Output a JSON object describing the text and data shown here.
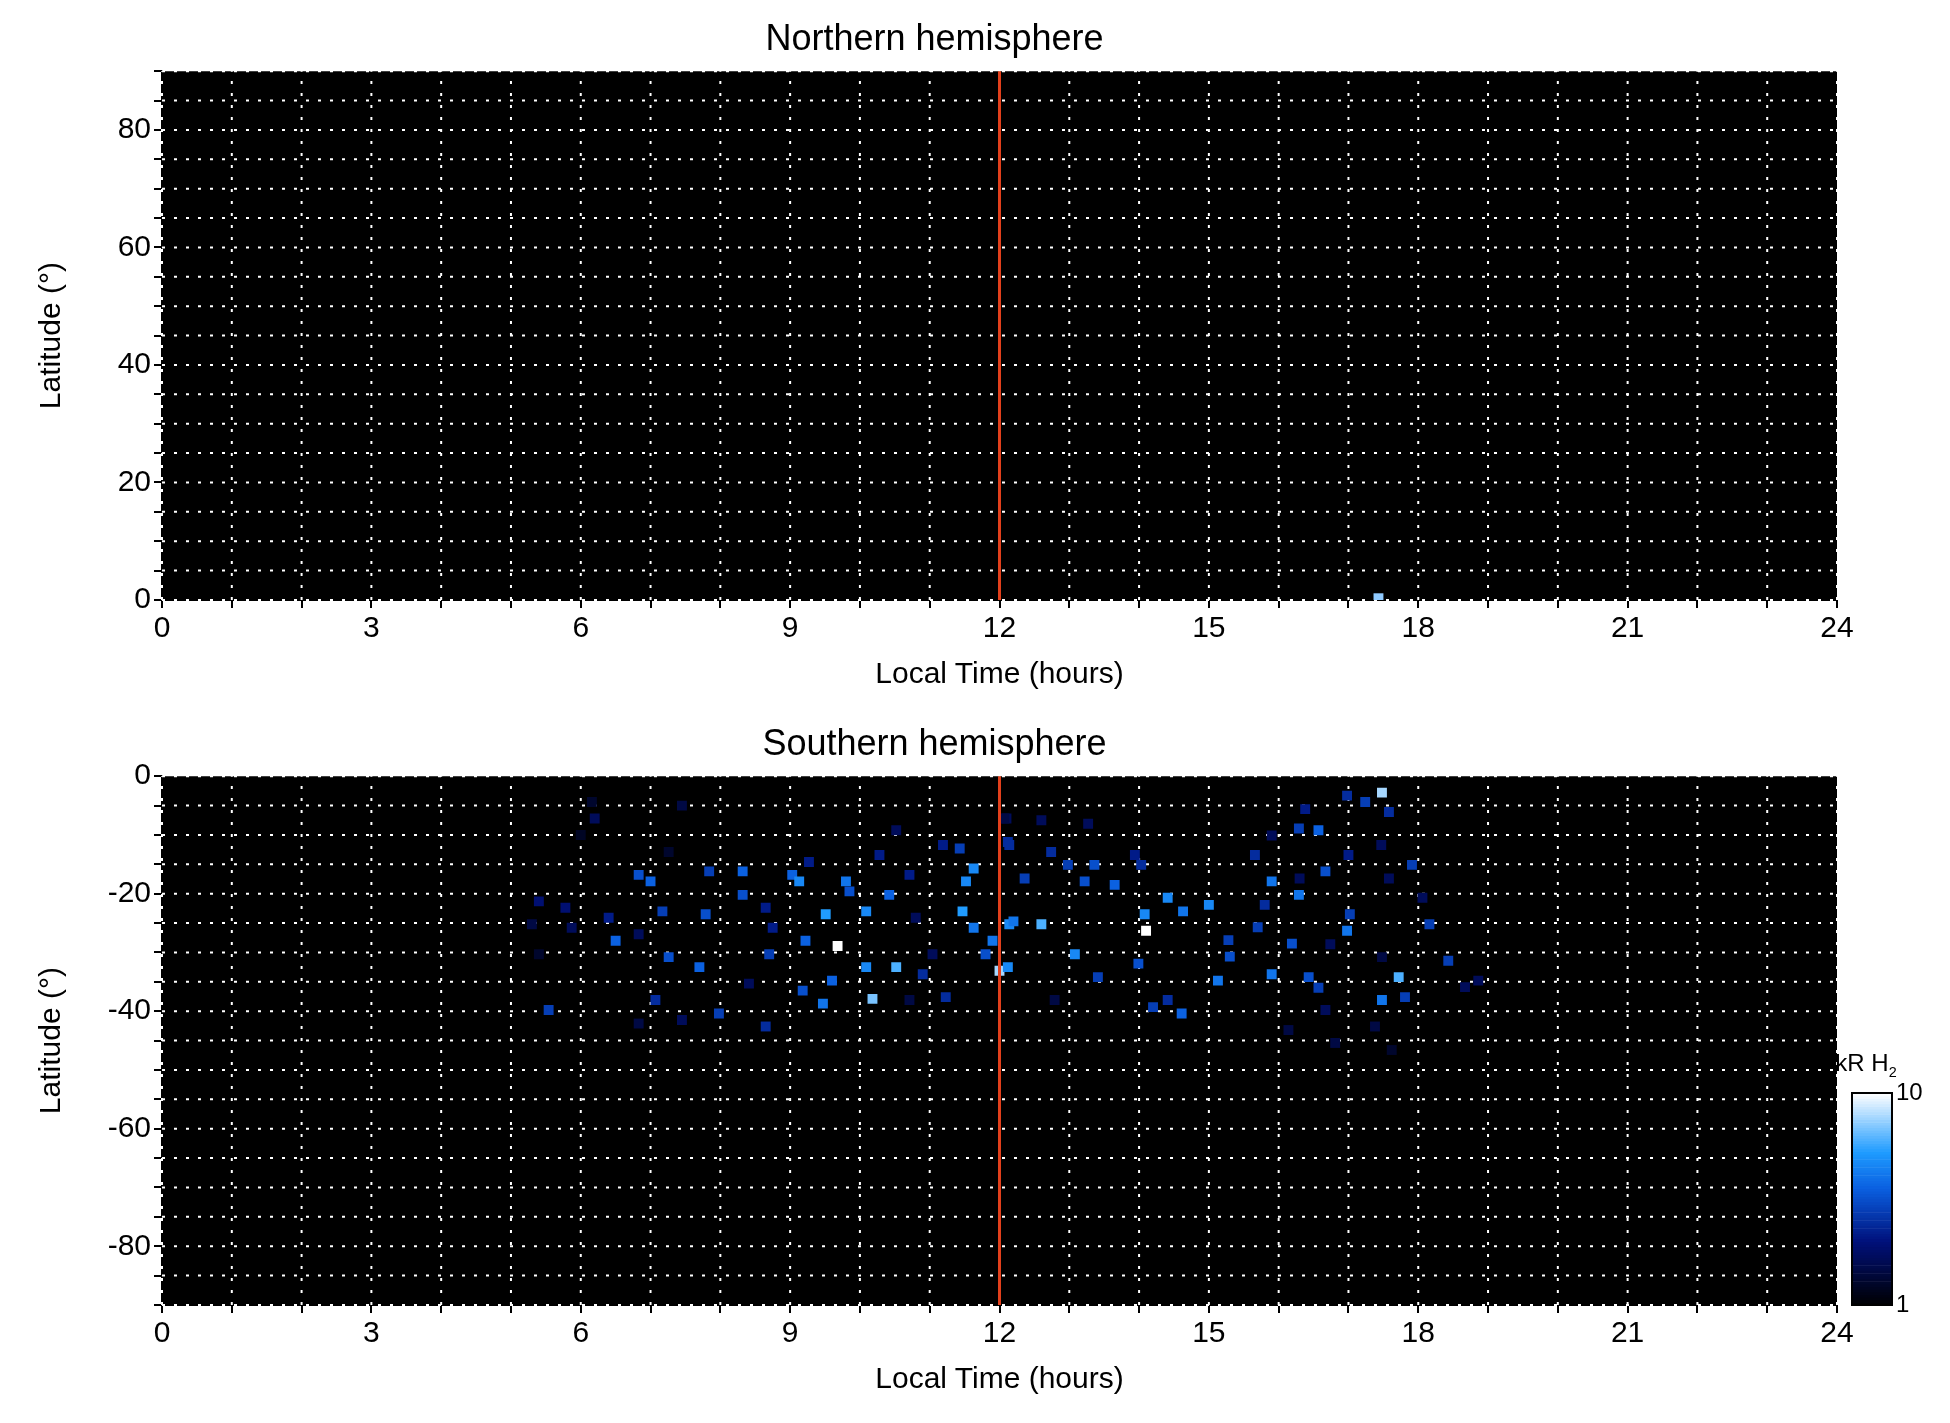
{
  "chart_data": [
    {
      "type": "scatter",
      "title": "Northern hemisphere",
      "xlabel": "Local Time (hours)",
      "ylabel": "Latitude (°)",
      "x": [
        17.43
      ],
      "values": [
        0.3
      ],
      "color": "#8fcaff",
      "marker": "square",
      "grid": true,
      "xlim": [
        0,
        24
      ],
      "ylim": [
        0,
        90
      ],
      "xticks": [
        0,
        {
          "value": 1,
          "label": null
        },
        {
          "value": 2,
          "label": null
        },
        3,
        {
          "value": 4,
          "label": null
        },
        {
          "value": 5,
          "label": null
        },
        6,
        {
          "value": 7,
          "label": null
        },
        {
          "value": 8,
          "label": null
        },
        9,
        {
          "value": 10,
          "label": null
        },
        {
          "value": 11,
          "label": null
        },
        12,
        {
          "value": 13,
          "label": null
        },
        {
          "value": 14,
          "label": null
        },
        15,
        {
          "value": 16,
          "label": null
        },
        {
          "value": 17,
          "label": null
        },
        18,
        {
          "value": 19,
          "label": null
        },
        {
          "value": 20,
          "label": null
        },
        21,
        {
          "value": 22,
          "label": null
        },
        {
          "value": 23,
          "label": null
        },
        24
      ],
      "yticks": [
        0,
        {
          "value": 5,
          "label": null
        },
        {
          "value": 10,
          "label": null
        },
        {
          "value": 15,
          "label": null
        },
        20,
        {
          "value": 25,
          "label": null
        },
        {
          "value": 30,
          "label": null
        },
        {
          "value": 35,
          "label": null
        },
        40,
        {
          "value": 45,
          "label": null
        },
        {
          "value": 50,
          "label": null
        },
        {
          "value": 55,
          "label": null
        },
        60,
        {
          "value": 65,
          "label": null
        },
        {
          "value": 70,
          "label": null
        },
        {
          "value": 75,
          "label": null
        },
        80,
        {
          "value": 85,
          "label": null
        },
        {
          "value": 90,
          "label": null
        }
      ],
      "ref_lines": [
        {
          "axis": "x",
          "value": 12,
          "color": "#e2401c"
        }
      ]
    },
    {
      "type": "scatter",
      "title": "Southern hemisphere",
      "xlabel": "Local Time (hours)",
      "ylabel": "Latitude (°)",
      "clabel": "kR H$_{2}$",
      "x": [
        6.16,
        6.2,
        6.0,
        7.45,
        7.26,
        6.83,
        7.0,
        5.4,
        5.78,
        5.3,
        5.87,
        5.4,
        6.5,
        6.4,
        6.83,
        7.26,
        7.7,
        7.07,
        5.54,
        6.83,
        7.45,
        7.79,
        7.17,
        8.32,
        8.32,
        7.84,
        8.65,
        8.75,
        8.7,
        8.41,
        7.98,
        8.65,
        9.03,
        9.13,
        9.27,
        9.51,
        9.22,
        9.68,
        9.8,
        9.85,
        10.09,
        10.09,
        9.6,
        9.47,
        9.18,
        10.18,
        10.52,
        10.52,
        10.28,
        10.71,
        10.42,
        10.8,
        11.04,
        10.9,
        11.23,
        10.71,
        11.43,
        11.19,
        11.63,
        11.52,
        11.47,
        11.63,
        11.9,
        11.8,
        12.0,
        12.14,
        12.1,
        12.14,
        12.07,
        12.6,
        13.27,
        12.12,
        12.74,
        12.98,
        12.36,
        12.6,
        12.2,
        12.12,
        13.08,
        13.36,
        13.65,
        13.22,
        14.08,
        14.1,
        13.94,
        14.03,
        14.41,
        14.63,
        15.0,
        13.41,
        13.99,
        14.41,
        14.61,
        14.2,
        12.79,
        15.13,
        15.3,
        15.28,
        15.7,
        15.8,
        16.19,
        15.9,
        16.43,
        16.57,
        16.67,
        15.66,
        15.9,
        16.29,
        15.9,
        16.57,
        16.29,
        16.38,
        16.98,
        17.48,
        17.24,
        17.58,
        17.0,
        17.47,
        16.67,
        16.3,
        17.02,
        16.98,
        16.74,
        17.58,
        17.91,
        18.06,
        18.16,
        17.48,
        17.72,
        18.43,
        17.48,
        17.81,
        18.67,
        18.86,
        17.38,
        16.81,
        17.62,
        16.14
      ],
      "values": [
        -4.4,
        -7.2,
        -10,
        -5,
        -12.9,
        -16.8,
        -17.9,
        -21.3,
        -22.4,
        -25.2,
        -25.8,
        -30.3,
        -28,
        -24.1,
        -26.9,
        -30.8,
        -32.5,
        -38.1,
        -39.8,
        -42.1,
        -41.5,
        -23.5,
        -23,
        -20.2,
        -16.2,
        -16.2,
        -22.4,
        -25.8,
        -30.3,
        -35.3,
        -40.4,
        -42.6,
        -16.8,
        -17.9,
        -14.6,
        -23.5,
        -28,
        -28.9,
        -17.9,
        -19.6,
        -23,
        -32.5,
        -34.8,
        -38.7,
        -36.5,
        -37.9,
        -32.5,
        -9.2,
        -13.4,
        -16.8,
        -20.2,
        -24.1,
        -30.3,
        -33.7,
        -37.6,
        -38.1,
        -12.3,
        -11.7,
        -15.7,
        -17.9,
        -23,
        -25.8,
        -28,
        -30.3,
        -33.1,
        -11.7,
        -7.2,
        -25.2,
        -7.2,
        -7.5,
        -8.1,
        -11.2,
        -12.9,
        -15.1,
        -17.4,
        -25.2,
        -24.7,
        -32.5,
        -30.3,
        -15.1,
        -18.5,
        -17.9,
        -23.5,
        -26.3,
        -13.4,
        -15.1,
        -20.7,
        -23,
        -21.9,
        -34.2,
        -31.9,
        -38.1,
        -40.4,
        -39.3,
        -38.1,
        -34.8,
        -30.7,
        -27.9,
        -25.7,
        -21.9,
        -28.5,
        -33.7,
        -34.2,
        -36,
        -39.8,
        -13.4,
        -17.9,
        -20.2,
        -10.1,
        -9.2,
        -8.9,
        -5.6,
        -3.3,
        -2.8,
        -4.4,
        -6.1,
        -13.4,
        -11.7,
        -16.2,
        -17.4,
        -23.5,
        -26.3,
        -28.6,
        -17.4,
        -15.1,
        -20.7,
        -25.2,
        -30.8,
        -34.2,
        -31.4,
        -38.1,
        -37.6,
        -35.9,
        -34.8,
        -42.6,
        -45.4,
        -46.6,
        -43.2
      ],
      "cvalues": [
        2,
        3,
        1.8,
        2.5,
        2,
        5.5,
        6,
        3.5,
        3.5,
        2.5,
        3,
        2,
        6,
        4,
        3,
        5.5,
        6,
        4.5,
        5,
        2.5,
        3,
        5.5,
        5,
        5.5,
        6,
        5,
        4,
        4,
        5,
        3,
        5,
        4.5,
        6,
        7,
        4,
        7.5,
        6,
        10,
        6.5,
        5.5,
        7,
        7,
        6,
        6.5,
        5.5,
        8.5,
        8,
        3,
        4,
        4,
        6,
        3,
        3,
        4.5,
        4.5,
        2.5,
        5,
        4,
        7,
        7,
        7.5,
        6.5,
        6.5,
        5.5,
        9,
        4.5,
        3,
        7,
        2.5,
        3,
        3,
        4.5,
        4.5,
        5,
        5,
        8,
        6.5,
        7,
        7,
        5.5,
        6,
        5.5,
        7,
        10,
        4,
        4.5,
        7,
        6.5,
        7,
        5,
        5.5,
        4.5,
        6,
        5,
        2.5,
        6.5,
        5.5,
        5,
        5,
        4.5,
        5.5,
        6.5,
        5.5,
        5,
        3,
        4.5,
        6.5,
        6.5,
        3,
        6,
        5,
        4,
        4.5,
        9,
        5,
        4.5,
        4,
        3,
        5.5,
        3,
        5,
        6.5,
        3,
        3,
        5,
        3,
        5,
        2.5,
        8,
        5,
        6.5,
        5,
        3,
        3,
        2.5,
        2.5,
        2,
        2.5
      ],
      "clim": [
        1,
        10
      ],
      "cticks": [
        1,
        10
      ],
      "marker": "square",
      "grid": true,
      "xlim": [
        0,
        24
      ],
      "ylim": [
        -90,
        0
      ],
      "xticks": [
        0,
        {
          "value": 1,
          "label": null
        },
        {
          "value": 2,
          "label": null
        },
        3,
        {
          "value": 4,
          "label": null
        },
        {
          "value": 5,
          "label": null
        },
        6,
        {
          "value": 7,
          "label": null
        },
        {
          "value": 8,
          "label": null
        },
        9,
        {
          "value": 10,
          "label": null
        },
        {
          "value": 11,
          "label": null
        },
        12,
        {
          "value": 13,
          "label": null
        },
        {
          "value": 14,
          "label": null
        },
        15,
        {
          "value": 16,
          "label": null
        },
        {
          "value": 17,
          "label": null
        },
        18,
        {
          "value": 19,
          "label": null
        },
        {
          "value": 20,
          "label": null
        },
        21,
        {
          "value": 22,
          "label": null
        },
        {
          "value": 23,
          "label": null
        },
        24
      ],
      "yticks": [
        {
          "value": -90,
          "label": null
        },
        {
          "value": -85,
          "label": null
        },
        -80,
        {
          "value": -75,
          "label": null
        },
        {
          "value": -70,
          "label": null
        },
        {
          "value": -65,
          "label": null
        },
        -60,
        {
          "value": -55,
          "label": null
        },
        {
          "value": -50,
          "label": null
        },
        {
          "value": -45,
          "label": null
        },
        -40,
        {
          "value": -35,
          "label": null
        },
        {
          "value": -30,
          "label": null
        },
        {
          "value": -25,
          "label": null
        },
        -20,
        {
          "value": -15,
          "label": null
        },
        {
          "value": -10,
          "label": null
        },
        {
          "value": -5,
          "label": null
        },
        0
      ],
      "ref_lines": [
        {
          "axis": "x",
          "value": 12,
          "color": "#e2401c"
        }
      ]
    }
  ]
}
